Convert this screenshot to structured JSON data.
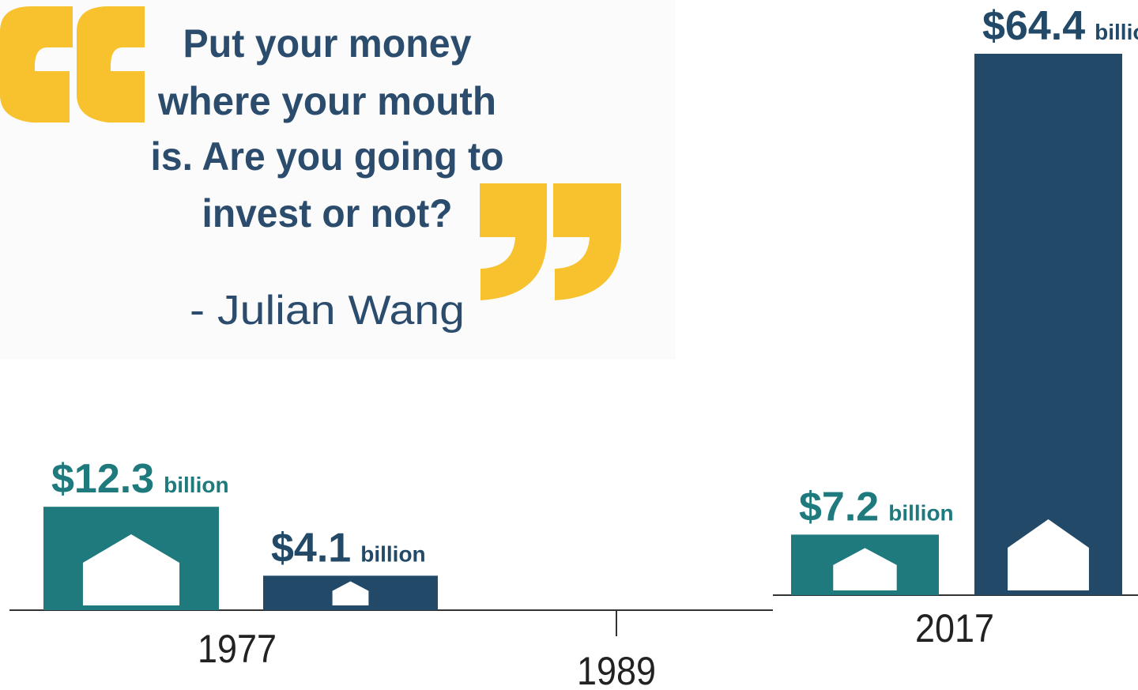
{
  "quote": {
    "lines": [
      "Put your money",
      "where your mouth",
      "is. Are you going to",
      "invest or not?"
    ],
    "author": "- Julian Wang"
  },
  "chart_data": {
    "type": "bar",
    "categories": [
      "1977",
      "1989",
      "2017"
    ],
    "value_unit": "billion",
    "series": [
      {
        "color": "#1f7a7d",
        "values": [
          12.3,
          null,
          7.2
        ],
        "value_labels": [
          "$12.3",
          null,
          "$7.2"
        ]
      },
      {
        "color": "#224a68",
        "values": [
          4.1,
          null,
          64.4
        ],
        "value_labels": [
          "$4.1",
          null,
          "$64.4"
        ]
      }
    ]
  }
}
